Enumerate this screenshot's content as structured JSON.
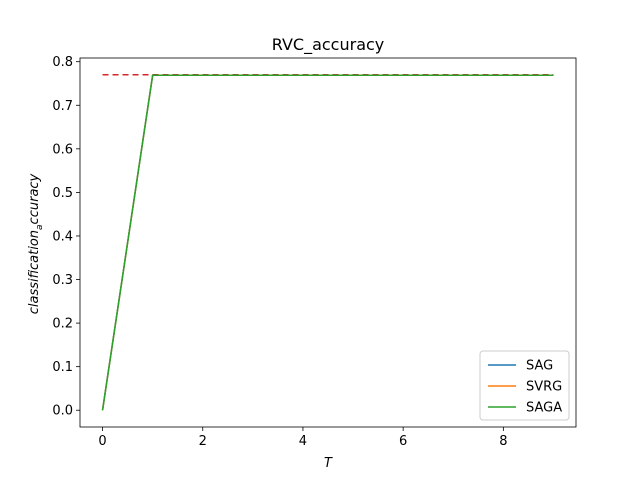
{
  "chart_data": {
    "type": "line",
    "title": "RVC_accuracy",
    "xlabel": "T",
    "ylabel_main": "classification",
    "ylabel_sub": "a",
    "ylabel_rest": "ccuracy",
    "xlim": [
      -0.45,
      9.45
    ],
    "ylim": [
      -0.0385,
      0.8085
    ],
    "xticks": [
      0,
      2,
      4,
      6,
      8
    ],
    "xtick_labels": [
      "0",
      "2",
      "4",
      "6",
      "8"
    ],
    "yticks": [
      0.0,
      0.1,
      0.2,
      0.3,
      0.4,
      0.5,
      0.6,
      0.7,
      0.8
    ],
    "ytick_labels": [
      "0.0",
      "0.1",
      "0.2",
      "0.3",
      "0.4",
      "0.5",
      "0.6",
      "0.7",
      "0.8"
    ],
    "x": [
      0,
      1,
      2,
      3,
      4,
      5,
      6,
      7,
      8,
      9
    ],
    "series": [
      {
        "name": "SAG",
        "color": "#1f77b4",
        "values": [
          0.0,
          0.769,
          0.769,
          0.769,
          0.769,
          0.769,
          0.769,
          0.769,
          0.769,
          0.769
        ]
      },
      {
        "name": "SVRG",
        "color": "#ff7f0e",
        "values": [
          0.0,
          0.769,
          0.769,
          0.769,
          0.769,
          0.769,
          0.769,
          0.769,
          0.769,
          0.769
        ]
      },
      {
        "name": "SAGA",
        "color": "#2ca02c",
        "values": [
          0.0,
          0.769,
          0.769,
          0.769,
          0.769,
          0.769,
          0.769,
          0.769,
          0.769,
          0.769
        ]
      }
    ],
    "reference_line": {
      "y": 0.77,
      "x": [
        0,
        9
      ],
      "color": "#d62728",
      "style": "dashed"
    },
    "grid": false,
    "legend": "lower-right"
  }
}
